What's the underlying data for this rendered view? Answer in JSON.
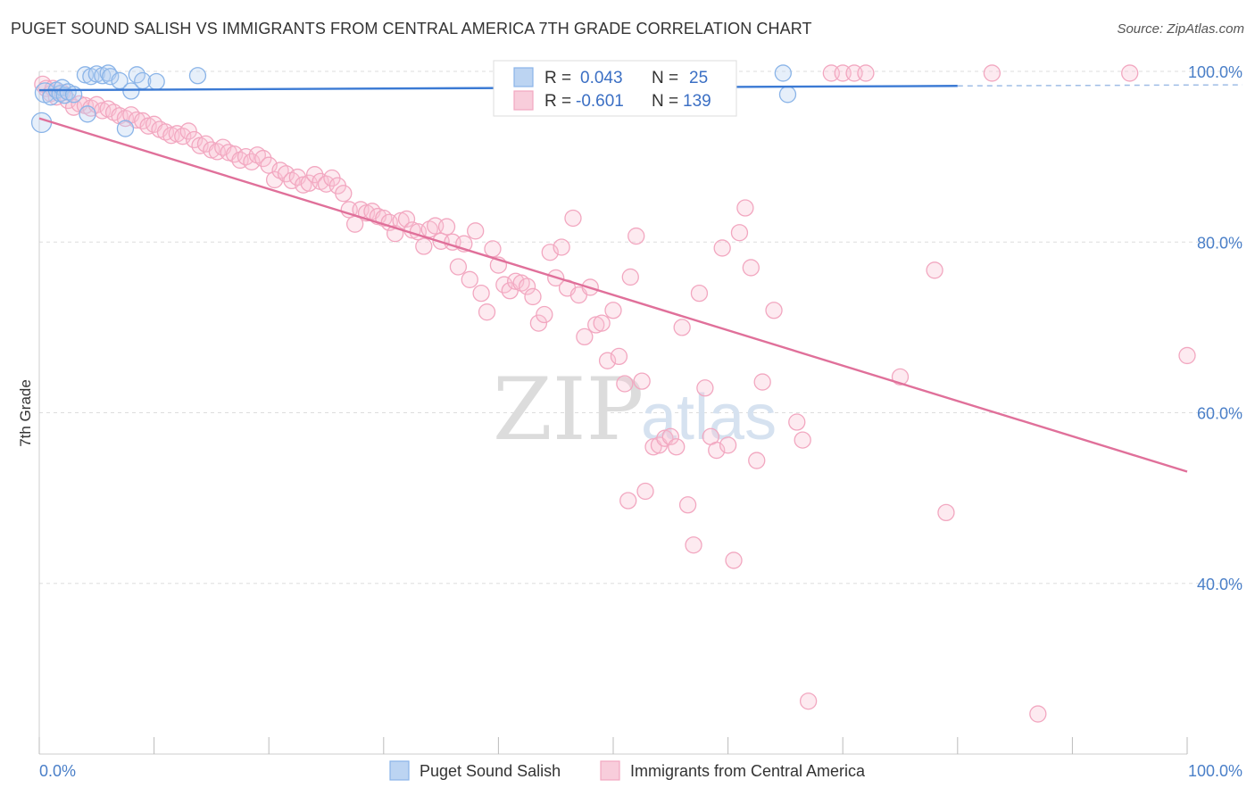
{
  "title": "PUGET SOUND SALISH VS IMMIGRANTS FROM CENTRAL AMERICA 7TH GRADE CORRELATION CHART",
  "source": "Source: ZipAtlas.com",
  "watermark": {
    "zip": "ZIP",
    "atlas": "atlas"
  },
  "colors": {
    "blue": "#8ab4e8",
    "blue_line": "#3b7ad4",
    "pink": "#f2a7c0",
    "pink_line": "#e0709a",
    "grid": "#dddddd"
  },
  "legend": {
    "rows": [
      {
        "r_label": "R =",
        "r_value": "0.043",
        "n_label": "N =",
        "n_value": "25"
      },
      {
        "r_label": "R =",
        "r_value": "-0.601",
        "n_label": "N =",
        "n_value": "139"
      }
    ]
  },
  "chart_data": {
    "type": "scatter",
    "title": "PUGET SOUND SALISH VS IMMIGRANTS FROM CENTRAL AMERICA 7TH GRADE CORRELATION CHART",
    "xlabel": "",
    "ylabel": "7th Grade",
    "xlim": [
      0,
      100
    ],
    "ylim": [
      20,
      100
    ],
    "x_tick_labels": [
      "0.0%",
      "100.0%"
    ],
    "y_ticks": [
      40,
      60,
      80,
      100
    ],
    "y_tick_labels": [
      "40.0%",
      "60.0%",
      "80.0%",
      "100.0%"
    ],
    "legend_position": "bottom",
    "series": [
      {
        "name": "Puget Sound Salish",
        "color": "#8ab4e8",
        "trend": {
          "x0": 0,
          "y0": 97.8,
          "x1": 80,
          "y1": 98.3,
          "dash_to": 100
        },
        "points": [
          [
            0.2,
            94.0
          ],
          [
            0.5,
            97.5
          ],
          [
            1.0,
            97.0
          ],
          [
            1.5,
            97.8
          ],
          [
            1.8,
            97.4
          ],
          [
            2.0,
            98.1
          ],
          [
            2.2,
            97.2
          ],
          [
            2.5,
            97.6
          ],
          [
            3.0,
            97.3
          ],
          [
            4.0,
            99.6
          ],
          [
            4.5,
            99.4
          ],
          [
            5.0,
            99.7
          ],
          [
            5.5,
            99.5
          ],
          [
            6.0,
            99.8
          ],
          [
            6.2,
            99.4
          ],
          [
            4.2,
            95.0
          ],
          [
            7.0,
            98.9
          ],
          [
            8.0,
            97.7
          ],
          [
            7.5,
            93.3
          ],
          [
            8.5,
            99.6
          ],
          [
            9.0,
            98.9
          ],
          [
            10.2,
            98.8
          ],
          [
            13.8,
            99.5
          ],
          [
            64.8,
            99.8
          ],
          [
            65.2,
            97.3
          ]
        ]
      },
      {
        "name": "Immigrants from Central America",
        "color": "#f2a7c0",
        "trend": {
          "x0": 0,
          "y0": 94.5,
          "x1": 100,
          "y1": 53.1
        },
        "points": [
          [
            0.3,
            98.5
          ],
          [
            0.6,
            98.0
          ],
          [
            1.0,
            97.4
          ],
          [
            1.2,
            98.0
          ],
          [
            1.5,
            97.0
          ],
          [
            2.0,
            97.5
          ],
          [
            2.5,
            96.6
          ],
          [
            3.0,
            95.8
          ],
          [
            3.5,
            96.2
          ],
          [
            4.0,
            96.0
          ],
          [
            4.5,
            95.7
          ],
          [
            5.0,
            96.1
          ],
          [
            5.5,
            95.4
          ],
          [
            6.0,
            95.6
          ],
          [
            6.5,
            95.2
          ],
          [
            7.0,
            94.8
          ],
          [
            7.5,
            94.5
          ],
          [
            8.0,
            94.9
          ],
          [
            8.5,
            94.3
          ],
          [
            9.0,
            94.2
          ],
          [
            9.5,
            93.6
          ],
          [
            10.0,
            93.8
          ],
          [
            10.5,
            93.2
          ],
          [
            11.0,
            92.9
          ],
          [
            11.5,
            92.5
          ],
          [
            12.0,
            92.7
          ],
          [
            12.5,
            92.4
          ],
          [
            13.0,
            93.0
          ],
          [
            13.5,
            92.0
          ],
          [
            14.0,
            91.3
          ],
          [
            14.5,
            91.5
          ],
          [
            15.0,
            90.8
          ],
          [
            15.5,
            90.6
          ],
          [
            16.0,
            91.1
          ],
          [
            16.5,
            90.5
          ],
          [
            17.0,
            90.3
          ],
          [
            17.5,
            89.6
          ],
          [
            18.0,
            90.0
          ],
          [
            18.5,
            89.4
          ],
          [
            19.0,
            90.2
          ],
          [
            19.5,
            89.8
          ],
          [
            20.0,
            89.0
          ],
          [
            20.5,
            87.3
          ],
          [
            21.0,
            88.4
          ],
          [
            21.5,
            88.0
          ],
          [
            22.0,
            87.2
          ],
          [
            22.5,
            87.6
          ],
          [
            23.0,
            86.7
          ],
          [
            23.5,
            86.9
          ],
          [
            24.0,
            87.9
          ],
          [
            24.5,
            87.1
          ],
          [
            25.0,
            86.8
          ],
          [
            25.5,
            87.5
          ],
          [
            26.0,
            86.6
          ],
          [
            26.5,
            85.7
          ],
          [
            27.0,
            83.8
          ],
          [
            27.5,
            82.1
          ],
          [
            28.0,
            83.8
          ],
          [
            28.5,
            83.4
          ],
          [
            29.0,
            83.6
          ],
          [
            29.5,
            83.0
          ],
          [
            30.0,
            82.8
          ],
          [
            30.5,
            82.3
          ],
          [
            31.0,
            81.0
          ],
          [
            31.5,
            82.5
          ],
          [
            32.0,
            82.7
          ],
          [
            32.5,
            81.4
          ],
          [
            33.0,
            81.2
          ],
          [
            33.5,
            79.5
          ],
          [
            34.0,
            81.5
          ],
          [
            34.5,
            81.9
          ],
          [
            35.0,
            80.1
          ],
          [
            35.5,
            81.8
          ],
          [
            36.0,
            80.0
          ],
          [
            36.5,
            77.1
          ],
          [
            37.0,
            79.8
          ],
          [
            37.5,
            75.6
          ],
          [
            38.0,
            81.3
          ],
          [
            38.5,
            74.0
          ],
          [
            39.0,
            71.8
          ],
          [
            39.5,
            79.2
          ],
          [
            40.0,
            77.3
          ],
          [
            40.5,
            75.0
          ],
          [
            41.0,
            74.3
          ],
          [
            41.5,
            75.4
          ],
          [
            42.0,
            75.2
          ],
          [
            42.5,
            74.8
          ],
          [
            43.0,
            73.6
          ],
          [
            43.5,
            70.5
          ],
          [
            44.0,
            71.5
          ],
          [
            44.5,
            78.8
          ],
          [
            45.0,
            75.8
          ],
          [
            45.5,
            79.4
          ],
          [
            46.0,
            74.6
          ],
          [
            46.5,
            82.8
          ],
          [
            47.0,
            73.8
          ],
          [
            47.5,
            68.9
          ],
          [
            48.0,
            74.7
          ],
          [
            48.5,
            70.3
          ],
          [
            49.0,
            70.5
          ],
          [
            49.5,
            66.1
          ],
          [
            50.0,
            72.0
          ],
          [
            50.5,
            66.6
          ],
          [
            51.0,
            63.4
          ],
          [
            51.5,
            75.9
          ],
          [
            52.0,
            80.7
          ],
          [
            52.5,
            63.7
          ],
          [
            53.5,
            56.0
          ],
          [
            54.0,
            56.2
          ],
          [
            54.5,
            57.0
          ],
          [
            55.0,
            57.2
          ],
          [
            55.5,
            56.0
          ],
          [
            56.0,
            70.0
          ],
          [
            56.5,
            49.2
          ],
          [
            57.0,
            44.5
          ],
          [
            57.5,
            74.0
          ],
          [
            58.0,
            62.9
          ],
          [
            58.5,
            57.2
          ],
          [
            59.0,
            55.6
          ],
          [
            59.5,
            79.3
          ],
          [
            60.0,
            56.2
          ],
          [
            60.5,
            42.7
          ],
          [
            61.0,
            81.1
          ],
          [
            61.5,
            84.0
          ],
          [
            62.0,
            77.0
          ],
          [
            62.5,
            54.4
          ],
          [
            63.0,
            63.6
          ],
          [
            64.0,
            72.0
          ],
          [
            66.0,
            58.9
          ],
          [
            66.5,
            56.8
          ],
          [
            67.0,
            26.2
          ],
          [
            69.0,
            99.8
          ],
          [
            70.0,
            99.8
          ],
          [
            71.0,
            99.8
          ],
          [
            72.0,
            99.8
          ],
          [
            75.0,
            64.2
          ],
          [
            78.0,
            76.7
          ],
          [
            79.0,
            48.3
          ],
          [
            83.0,
            99.8
          ],
          [
            87.0,
            24.7
          ],
          [
            95.0,
            99.8
          ],
          [
            100.0,
            66.7
          ],
          [
            51.3,
            49.7
          ],
          [
            52.8,
            50.8
          ]
        ]
      }
    ]
  }
}
